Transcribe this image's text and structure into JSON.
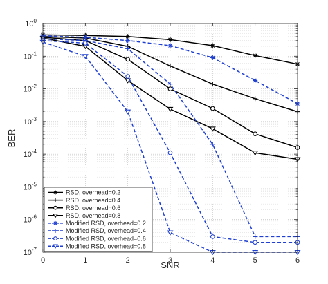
{
  "chart_data": {
    "type": "line",
    "title": "",
    "xlabel": "SNR",
    "ylabel": "BER",
    "x": [
      0,
      1,
      2,
      3,
      4,
      5,
      6
    ],
    "xlim": [
      0,
      6
    ],
    "ylim": [
      1e-07,
      1
    ],
    "yscale": "log",
    "grid": true,
    "legend_position": "bottom-left",
    "x_ticks": [
      "0",
      "1",
      "2",
      "3",
      "4",
      "5",
      "6"
    ],
    "y_ticks": [
      {
        "base": "10",
        "exp": "0"
      },
      {
        "base": "10",
        "exp": "-1"
      },
      {
        "base": "10",
        "exp": "-2"
      },
      {
        "base": "10",
        "exp": "-3"
      },
      {
        "base": "10",
        "exp": "-4"
      },
      {
        "base": "10",
        "exp": "-5"
      },
      {
        "base": "10",
        "exp": "-6"
      },
      {
        "base": "10",
        "exp": "-7"
      }
    ],
    "series": [
      {
        "name": "RSD, overhead=0.2",
        "color": "#000000",
        "dash": "solid",
        "marker": "star",
        "values": [
          0.45,
          0.43,
          0.4,
          0.32,
          0.21,
          0.105,
          0.057
        ]
      },
      {
        "name": "RSD, overhead=0.4",
        "color": "#000000",
        "dash": "solid",
        "marker": "plus",
        "values": [
          0.4,
          0.36,
          0.2,
          0.05,
          0.014,
          0.005,
          0.002
        ]
      },
      {
        "name": "RSD, overhead=0.6",
        "color": "#000000",
        "dash": "solid",
        "marker": "circle",
        "values": [
          0.38,
          0.3,
          0.08,
          0.01,
          0.0025,
          0.00042,
          0.00016
        ]
      },
      {
        "name": "RSD, overhead=0.8",
        "color": "#000000",
        "dash": "solid",
        "marker": "triangle-down",
        "values": [
          0.36,
          0.2,
          0.018,
          0.0024,
          0.0006,
          0.00011,
          7e-05
        ]
      },
      {
        "name": "Modified RSD, overhead=0.2",
        "color": "#1f3fd0",
        "dash": "dashed",
        "marker": "star",
        "values": [
          0.42,
          0.38,
          0.3,
          0.21,
          0.09,
          0.018,
          0.0035
        ]
      },
      {
        "name": "Modified RSD, overhead=0.4",
        "color": "#1f3fd0",
        "dash": "dashed",
        "marker": "plus",
        "values": [
          0.34,
          0.3,
          0.17,
          0.014,
          0.0002,
          3e-07,
          3e-07
        ]
      },
      {
        "name": "Modified RSD, overhead=0.6",
        "color": "#1f3fd0",
        "dash": "dashed",
        "marker": "circle",
        "values": [
          0.3,
          0.25,
          0.024,
          0.00011,
          3e-07,
          2e-07,
          2e-07
        ]
      },
      {
        "name": "Modified RSD, overhead=0.8",
        "color": "#1f3fd0",
        "dash": "dashed",
        "marker": "triangle-down",
        "values": [
          0.27,
          0.1,
          0.002,
          4e-07,
          1e-07,
          1e-07,
          1e-07
        ]
      }
    ]
  }
}
